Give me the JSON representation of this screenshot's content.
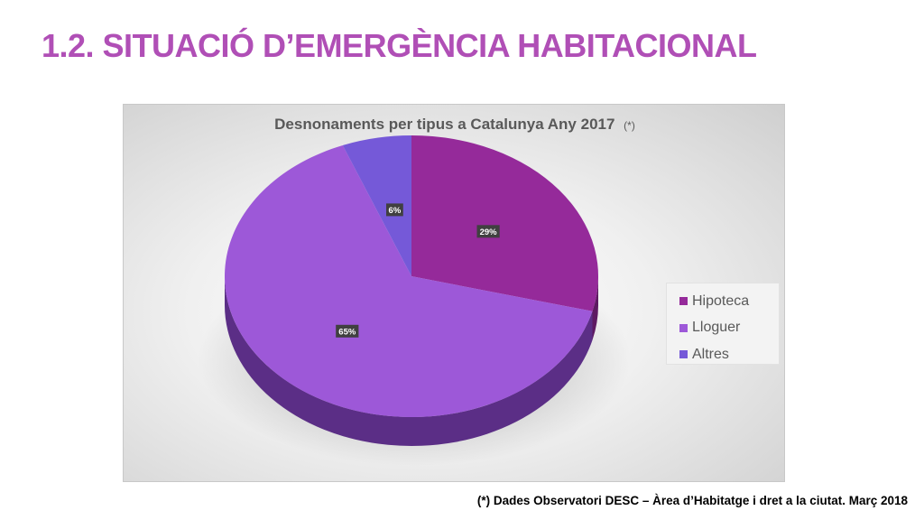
{
  "slide": {
    "title": "1.2. SITUACIÓ D’EMERGÈNCIA HABITACIONAL",
    "title_color": "#b04fb6",
    "footnote": "(*) Dades Observatori DESC – Àrea d’Habitatge i dret a la ciutat. Març 2018"
  },
  "chart_data": {
    "type": "pie",
    "style": "3d",
    "title": "Desnonaments per tipus a Catalunya Any 2017",
    "title_note": "(*)",
    "categories": [
      "Hipoteca",
      "Lloguer",
      "Altres"
    ],
    "values": [
      29,
      65,
      6
    ],
    "data_labels": [
      "29%",
      "65%",
      "6%"
    ],
    "colors": [
      "#952a9a",
      "#9d58d8",
      "#7559d8"
    ],
    "side_colors": [
      "#5e1a62",
      "#5b2e86",
      "#47348a"
    ],
    "legend": {
      "position": "right",
      "items": [
        {
          "label": "Hipoteca",
          "color": "#952a9a"
        },
        {
          "label": "Lloguer",
          "color": "#9d58d8"
        },
        {
          "label": "Altres",
          "color": "#7559d8"
        }
      ]
    }
  }
}
